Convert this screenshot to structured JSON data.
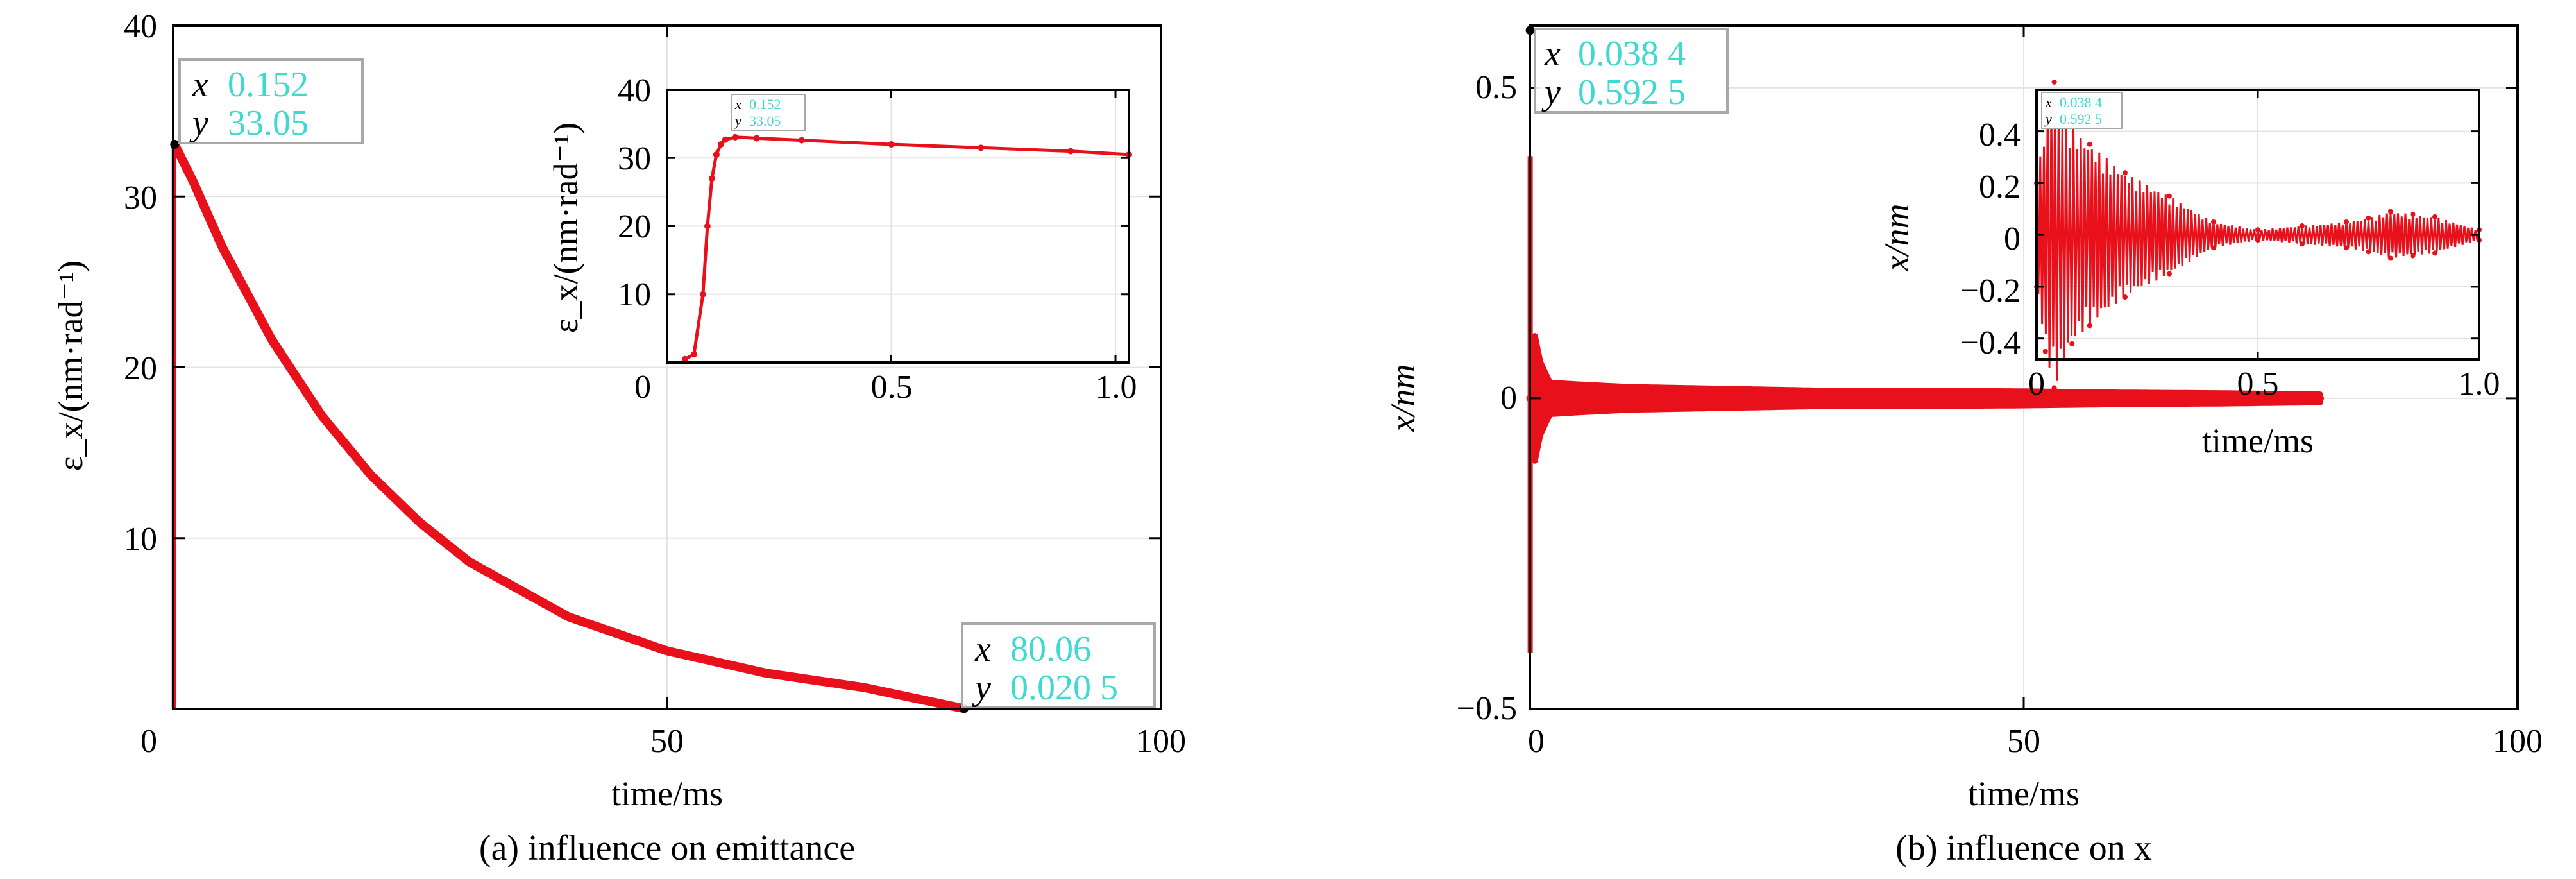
{
  "colors": {
    "series": "#e8101a",
    "datatip_value": "#3fd9d0",
    "grid": "#e3e3e3",
    "box": "#a8a8a8"
  },
  "chart_data": [
    {
      "type": "scatter",
      "caption": "(a) influence on emittance",
      "xlabel": "time/ms",
      "ylabel": "ε_x/(nm·rad⁻¹)",
      "xlim": [
        0,
        100
      ],
      "ylim": [
        0,
        40
      ],
      "xticks": [
        0,
        50,
        100
      ],
      "yticks": [
        10,
        20,
        30,
        40
      ],
      "xtick_labels": [
        "0",
        "50",
        "100"
      ],
      "ytick_labels": [
        "10",
        "20",
        "30",
        "40"
      ],
      "origin_label": "0",
      "grid": true,
      "series": [
        {
          "x": [
            0.152,
            2,
            5,
            10,
            15,
            20,
            25,
            30,
            40,
            50,
            60,
            70,
            80.06
          ],
          "y": [
            33.05,
            30.9,
            27.0,
            21.6,
            17.2,
            13.7,
            10.9,
            8.6,
            5.4,
            3.4,
            2.1,
            1.25,
            0.0205
          ]
        }
      ],
      "datatips": [
        {
          "x_key": "x",
          "x_value": "0.152",
          "y_key": "y",
          "y_value": "33.05",
          "at": [
            0.152,
            33.05
          ]
        },
        {
          "x_key": "x",
          "x_value": "80.06",
          "y_key": "y",
          "y_value": "0.020 5",
          "at": [
            80.06,
            0.0205
          ]
        }
      ],
      "inset": {
        "xlabel": "",
        "ylabel": "ε_x/(nm·rad⁻¹)",
        "xlim": [
          0,
          1.03
        ],
        "ylim": [
          0,
          40
        ],
        "xticks": [
          0,
          0.5,
          1.0
        ],
        "yticks": [
          0,
          10,
          20,
          30,
          40
        ],
        "xtick_labels": [
          "0",
          "0.5",
          "1.0"
        ],
        "ytick_labels": [
          "0",
          "10",
          "20",
          "30",
          "40"
        ],
        "series": [
          {
            "x": [
              0.04,
              0.06,
              0.08,
              0.09,
              0.1,
              0.11,
              0.12,
              0.13,
              0.152,
              0.2,
              0.3,
              0.5,
              0.7,
              0.9,
              1.03
            ],
            "y": [
              0.5,
              1.2,
              10,
              20,
              27,
              30.5,
              32,
              32.7,
              33.05,
              32.9,
              32.6,
              32.0,
              31.5,
              31.0,
              30.5
            ]
          }
        ],
        "datatip": {
          "x_key": "x",
          "x_value": "0.152",
          "y_key": "y",
          "y_value": "33.05",
          "at": [
            0.152,
            33.05
          ]
        }
      }
    },
    {
      "type": "scatter",
      "caption": "(b) influence on x",
      "xlabel": "time/ms",
      "ylabel": "x/nm",
      "xlim": [
        0,
        100
      ],
      "ylim": [
        -0.5,
        0.6
      ],
      "xticks": [
        0,
        50,
        100
      ],
      "yticks": [
        -0.5,
        0,
        0.5
      ],
      "xtick_labels": [
        "0",
        "50",
        "100"
      ],
      "ytick_labels": [
        "−0.5",
        "0",
        "0.5"
      ],
      "grid": true,
      "series": [
        {
          "x": [
            0.0384,
            0.5,
            1,
            2,
            5,
            10,
            20,
            30,
            40,
            50,
            60,
            70,
            80
          ],
          "amplitude": [
            0.5925,
            0.1,
            0.06,
            0.025,
            0.022,
            0.018,
            0.015,
            0.012,
            0.012,
            0.011,
            0.009,
            0.008,
            0.006
          ]
        }
      ],
      "datatips": [
        {
          "x_key": "x",
          "x_value": "0.038 4",
          "y_key": "y",
          "y_value": "0.592 5",
          "at": [
            0.0384,
            0.5925
          ]
        }
      ],
      "inset": {
        "xlabel": "time/ms",
        "ylabel": "x/nm",
        "xlim": [
          0,
          1.0
        ],
        "ylim": [
          -0.48,
          0.56
        ],
        "xticks": [
          0,
          0.5,
          1.0
        ],
        "yticks": [
          -0.4,
          -0.2,
          0,
          0.2,
          0.4
        ],
        "xtick_labels": [
          "0",
          "0.5",
          "1.0"
        ],
        "ytick_labels": [
          "−0.4",
          "−0.2",
          "0",
          "0.2",
          "0.4"
        ],
        "series": [
          {
            "x": [
              0,
              0.02,
              0.04,
              0.08,
              0.12,
              0.2,
              0.3,
              0.4,
              0.5,
              0.6,
              0.7,
              0.75,
              0.8,
              0.85,
              0.9,
              1.0
            ],
            "amplitude": [
              0.2,
              0.45,
              0.59,
              0.42,
              0.35,
              0.24,
              0.15,
              0.05,
              0.02,
              0.035,
              0.05,
              0.065,
              0.09,
              0.08,
              0.07,
              0.02
            ]
          }
        ],
        "datatip": {
          "x_key": "x",
          "x_value": "0.038 4",
          "y_key": "y",
          "y_value": "0.592 5",
          "at": [
            0.0384,
            0.5925
          ]
        }
      }
    }
  ]
}
